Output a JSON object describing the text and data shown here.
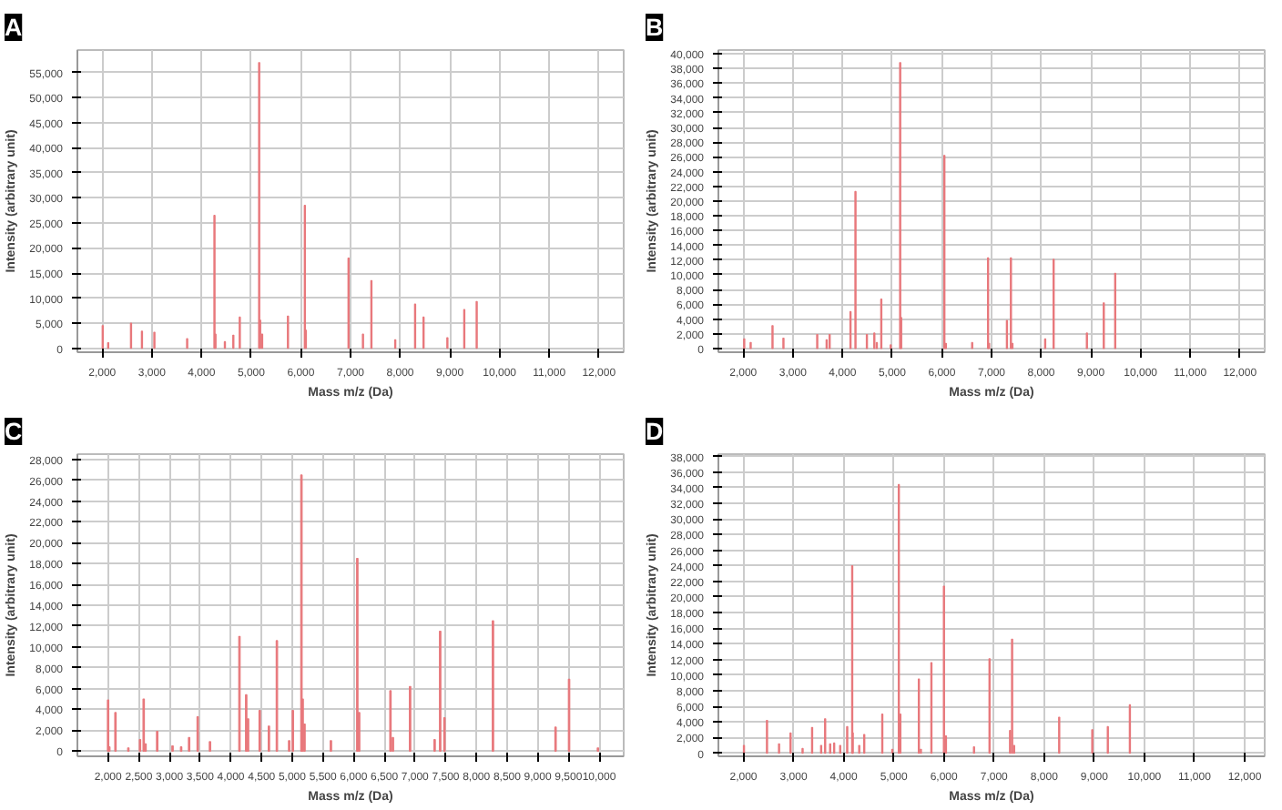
{
  "chart_data": [
    {
      "type": "bar",
      "title": "A",
      "xlabel": "Mass m/z (Da)",
      "ylabel": "Intensity (arbitrary unit)",
      "color": "#e8787c",
      "grid": true,
      "xlim": [
        1500,
        12500
      ],
      "ylim": [
        -800,
        59500
      ],
      "xticks": [
        {
          "value": 2000,
          "label": "2,000"
        },
        {
          "value": 3000,
          "label": "3,000"
        },
        {
          "value": 4000,
          "label": "4,000"
        },
        {
          "value": 5000,
          "label": "5,000"
        },
        {
          "value": 6000,
          "label": "6,000"
        },
        {
          "value": 7000,
          "label": "7,000"
        },
        {
          "value": 8000,
          "label": "8,000"
        },
        {
          "value": 9000,
          "label": "9,000"
        },
        {
          "value": 10000,
          "label": "10,000"
        },
        {
          "value": 11000,
          "label": "11,000"
        },
        {
          "value": 12000,
          "label": "12,000"
        }
      ],
      "yticks": [
        0,
        {
          "value": 5000,
          "label": "5,000"
        },
        {
          "value": 10000,
          "label": "10,000"
        },
        {
          "value": 15000,
          "label": "15,000"
        },
        {
          "value": 20000,
          "label": "20,000"
        },
        {
          "value": 25000,
          "label": "25,000"
        },
        {
          "value": 30000,
          "label": "30,000"
        },
        {
          "value": 35000,
          "label": "35,000"
        },
        {
          "value": 40000,
          "label": "40,000"
        },
        {
          "value": 45000,
          "label": "45,000"
        },
        {
          "value": 50000,
          "label": "50,000"
        },
        {
          "value": 55000,
          "label": "55,000"
        }
      ],
      "x": [
        2010,
        2120,
        2580,
        2800,
        3050,
        3710,
        4260,
        4280,
        4470,
        4640,
        4770,
        5160,
        5180,
        5220,
        5740,
        6080,
        6100,
        6960,
        7250,
        7420,
        7900,
        8300,
        8470,
        8950,
        9290,
        9540
      ],
      "values": [
        4500,
        1100,
        5000,
        3400,
        3200,
        1900,
        26500,
        2800,
        1300,
        2600,
        6200,
        57000,
        5600,
        2800,
        6400,
        28500,
        3600,
        18000,
        2800,
        13500,
        1700,
        8800,
        6200,
        2100,
        7700,
        9300
      ]
    },
    {
      "type": "bar",
      "title": "B",
      "xlabel": "Mass m/z (Da)",
      "ylabel": "Intensity (arbitrary unit)",
      "color": "#e8787c",
      "grid": true,
      "xlim": [
        1500,
        12500
      ],
      "ylim": [
        -500,
        40500
      ],
      "xticks": [
        {
          "value": 2000,
          "label": "2,000"
        },
        {
          "value": 3000,
          "label": "3,000"
        },
        {
          "value": 4000,
          "label": "4,000"
        },
        {
          "value": 5000,
          "label": "5,000"
        },
        {
          "value": 6000,
          "label": "6,000"
        },
        {
          "value": 7000,
          "label": "7,000"
        },
        {
          "value": 8000,
          "label": "8,000"
        },
        {
          "value": 9000,
          "label": "9,000"
        },
        {
          "value": 10000,
          "label": "10,000"
        },
        {
          "value": 11000,
          "label": "11,000"
        },
        {
          "value": 12000,
          "label": "12,000"
        }
      ],
      "yticks": [
        0,
        {
          "value": 2000,
          "label": "2,000"
        },
        {
          "value": 4000,
          "label": "4,000"
        },
        {
          "value": 6000,
          "label": "6,000"
        },
        {
          "value": 8000,
          "label": "8,000"
        },
        {
          "value": 10000,
          "label": "10,000"
        },
        {
          "value": 12000,
          "label": "12,000"
        },
        {
          "value": 14000,
          "label": "14,000"
        },
        {
          "value": 16000,
          "label": "16,000"
        },
        {
          "value": 18000,
          "label": "18,000"
        },
        {
          "value": 20000,
          "label": "20,000"
        },
        {
          "value": 22000,
          "label": "22,000"
        },
        {
          "value": 24000,
          "label": "24,000"
        },
        {
          "value": 26000,
          "label": "26,000"
        },
        {
          "value": 28000,
          "label": "28,000"
        },
        {
          "value": 30000,
          "label": "30,000"
        },
        {
          "value": 32000,
          "label": "32,000"
        },
        {
          "value": 34000,
          "label": "34,000"
        },
        {
          "value": 36000,
          "label": "36,000"
        },
        {
          "value": 38000,
          "label": "38,000"
        },
        {
          "value": 40000,
          "label": "40,000"
        }
      ],
      "x": [
        2020,
        2150,
        2590,
        2810,
        3490,
        3680,
        3740,
        4160,
        4260,
        4490,
        4640,
        4690,
        4780,
        4970,
        5160,
        5180,
        6050,
        6080,
        6610,
        6930,
        6950,
        7310,
        7390,
        7420,
        8080,
        8250,
        8920,
        9260,
        9490
      ],
      "values": [
        1300,
        800,
        3100,
        1400,
        1900,
        1200,
        1900,
        5000,
        21300,
        1900,
        2100,
        800,
        6700,
        500,
        38800,
        4200,
        26200,
        700,
        800,
        12300,
        700,
        3800,
        12300,
        700,
        1300,
        12100,
        2100,
        6200,
        10200
      ]
    },
    {
      "type": "bar",
      "title": "C",
      "xlabel": "Mass m/z (Da)",
      "ylabel": "Intensity (arbitrary unit)",
      "color": "#e8787c",
      "grid": true,
      "xlim": [
        1500,
        10400
      ],
      "ylim": [
        -500,
        28500
      ],
      "xticks": [
        {
          "value": 2000,
          "label": "2,000"
        },
        {
          "value": 2500,
          "label": "2,500"
        },
        {
          "value": 3000,
          "label": "3,000"
        },
        {
          "value": 3500,
          "label": "3,500"
        },
        {
          "value": 4000,
          "label": "4,000"
        },
        {
          "value": 4500,
          "label": "4,500"
        },
        {
          "value": 5000,
          "label": "5,000"
        },
        {
          "value": 5500,
          "label": "5,500"
        },
        {
          "value": 6000,
          "label": "6,000"
        },
        {
          "value": 6500,
          "label": "6,500"
        },
        {
          "value": 7000,
          "label": "7,000"
        },
        {
          "value": 7500,
          "label": "7,500"
        },
        {
          "value": 8000,
          "label": "8,000"
        },
        {
          "value": 8500,
          "label": "8,500"
        },
        {
          "value": 9000,
          "label": "9,000"
        },
        {
          "value": 9500,
          "label": "9,500"
        },
        {
          "value": 10000,
          "label": "10,000"
        }
      ],
      "yticks": [
        0,
        {
          "value": 2000,
          "label": "2,000"
        },
        {
          "value": 4000,
          "label": "4,000"
        },
        {
          "value": 6000,
          "label": "6,000"
        },
        {
          "value": 8000,
          "label": "8,000"
        },
        {
          "value": 10000,
          "label": "10,000"
        },
        {
          "value": 12000,
          "label": "12,000"
        },
        {
          "value": 14000,
          "label": "14,000"
        },
        {
          "value": 16000,
          "label": "16,000"
        },
        {
          "value": 18000,
          "label": "18,000"
        },
        {
          "value": 20000,
          "label": "20,000"
        },
        {
          "value": 22000,
          "label": "22,000"
        },
        {
          "value": 24000,
          "label": "24,000"
        },
        {
          "value": 26000,
          "label": "26,000"
        },
        {
          "value": 28000,
          "label": "28,000"
        }
      ],
      "x": [
        2000,
        2020,
        2120,
        2330,
        2520,
        2580,
        2610,
        2800,
        3050,
        3190,
        3320,
        3460,
        3660,
        4140,
        4250,
        4280,
        4470,
        4620,
        4750,
        4950,
        5010,
        5150,
        5170,
        5200,
        5630,
        6060,
        6090,
        6600,
        6640,
        6920,
        7320,
        7410,
        7480,
        8270,
        9290,
        9510,
        9980
      ],
      "values": [
        4900,
        400,
        3700,
        300,
        1100,
        5000,
        700,
        1900,
        500,
        400,
        1300,
        3300,
        900,
        11000,
        5400,
        3100,
        3900,
        2400,
        10600,
        1000,
        3900,
        26500,
        5000,
        2600,
        1000,
        18500,
        3700,
        5800,
        1300,
        6200,
        1100,
        11500,
        3200,
        12500,
        2300,
        6900,
        300
      ]
    },
    {
      "type": "bar",
      "title": "D",
      "xlabel": "Mass m/z (Da)",
      "ylabel": "Intensity (arbitrary unit)",
      "color": "#e8787c",
      "grid": true,
      "xlim": [
        1500,
        12400
      ],
      "ylim": [
        -400,
        38300
      ],
      "xticks": [
        {
          "value": 2000,
          "label": "2,000"
        },
        {
          "value": 3000,
          "label": "3,000"
        },
        {
          "value": 4000,
          "label": "4,000"
        },
        {
          "value": 5000,
          "label": "5,000"
        },
        {
          "value": 6000,
          "label": "6,000"
        },
        {
          "value": 7000,
          "label": "7,000"
        },
        {
          "value": 8000,
          "label": "8,000"
        },
        {
          "value": 9000,
          "label": "9,000"
        },
        {
          "value": 10000,
          "label": "10,000"
        },
        {
          "value": 11000,
          "label": "11,000"
        },
        {
          "value": 12000,
          "label": "12,000"
        }
      ],
      "yticks": [
        0,
        {
          "value": 2000,
          "label": "2,000"
        },
        {
          "value": 4000,
          "label": "4,000"
        },
        {
          "value": 6000,
          "label": "6,000"
        },
        {
          "value": 8000,
          "label": "8,000"
        },
        {
          "value": 10000,
          "label": "10,000"
        },
        {
          "value": 12000,
          "label": "12,000"
        },
        {
          "value": 14000,
          "label": "14,000"
        },
        {
          "value": 16000,
          "label": "16,000"
        },
        {
          "value": 18000,
          "label": "18,000"
        },
        {
          "value": 20000,
          "label": "20,000"
        },
        {
          "value": 22000,
          "label": "22,000"
        },
        {
          "value": 24000,
          "label": "24,000"
        },
        {
          "value": 26000,
          "label": "26,000"
        },
        {
          "value": 28000,
          "label": "28,000"
        },
        {
          "value": 30000,
          "label": "30,000"
        },
        {
          "value": 32000,
          "label": "32,000"
        },
        {
          "value": 34000,
          "label": "34,000"
        },
        {
          "value": 36000,
          "label": "36,000"
        },
        {
          "value": 38000,
          "label": "38,000"
        }
      ],
      "x": [
        2010,
        2470,
        2710,
        2940,
        3180,
        3370,
        3550,
        3630,
        3730,
        3810,
        3930,
        4070,
        4170,
        4180,
        4310,
        4410,
        4770,
        4970,
        5100,
        5130,
        5500,
        5540,
        5750,
        6000,
        6040,
        6600,
        6910,
        7320,
        7360,
        7400,
        8300,
        8960,
        9270,
        9710
      ],
      "values": [
        1000,
        4200,
        1200,
        2600,
        600,
        3300,
        1000,
        4400,
        1200,
        1300,
        1000,
        3400,
        24000,
        2600,
        1000,
        2400,
        5000,
        500,
        34400,
        5000,
        9500,
        500,
        11600,
        21400,
        2200,
        800,
        12100,
        2900,
        14600,
        1000,
        4600,
        3000,
        3400,
        6200
      ]
    }
  ]
}
